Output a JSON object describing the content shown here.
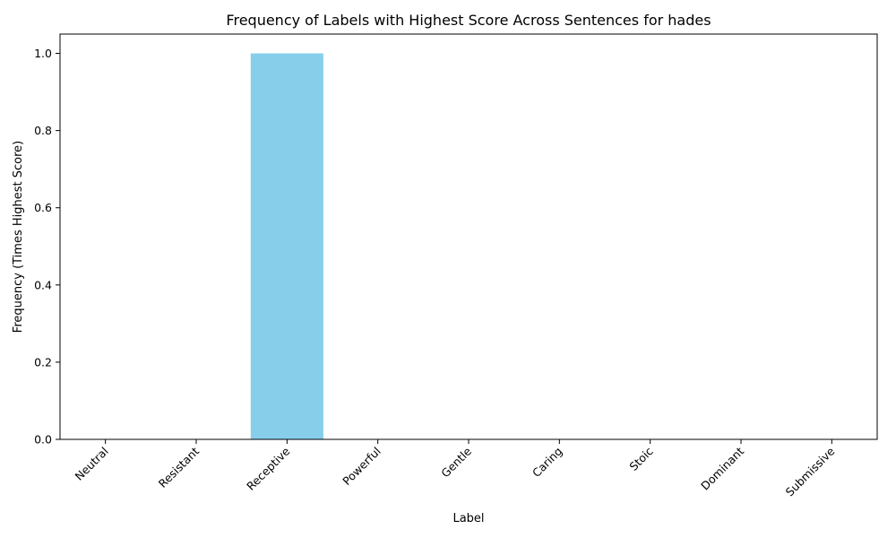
{
  "chart_data": {
    "type": "bar",
    "title": "Frequency of Labels with Highest Score Across Sentences for hades",
    "xlabel": "Label",
    "ylabel": "Frequency (Times Highest Score)",
    "categories": [
      "Neutral",
      "Resistant",
      "Receptive",
      "Powerful",
      "Gentle",
      "Caring",
      "Stoic",
      "Dominant",
      "Submissive"
    ],
    "values": [
      0,
      0,
      1,
      0,
      0,
      0,
      0,
      0,
      0
    ],
    "ylim": [
      0,
      1.05
    ],
    "yticks": [
      0.0,
      0.2,
      0.4,
      0.6,
      0.8,
      1.0
    ],
    "bar_color": "#87ceeb",
    "grid": false,
    "legend": "none"
  }
}
